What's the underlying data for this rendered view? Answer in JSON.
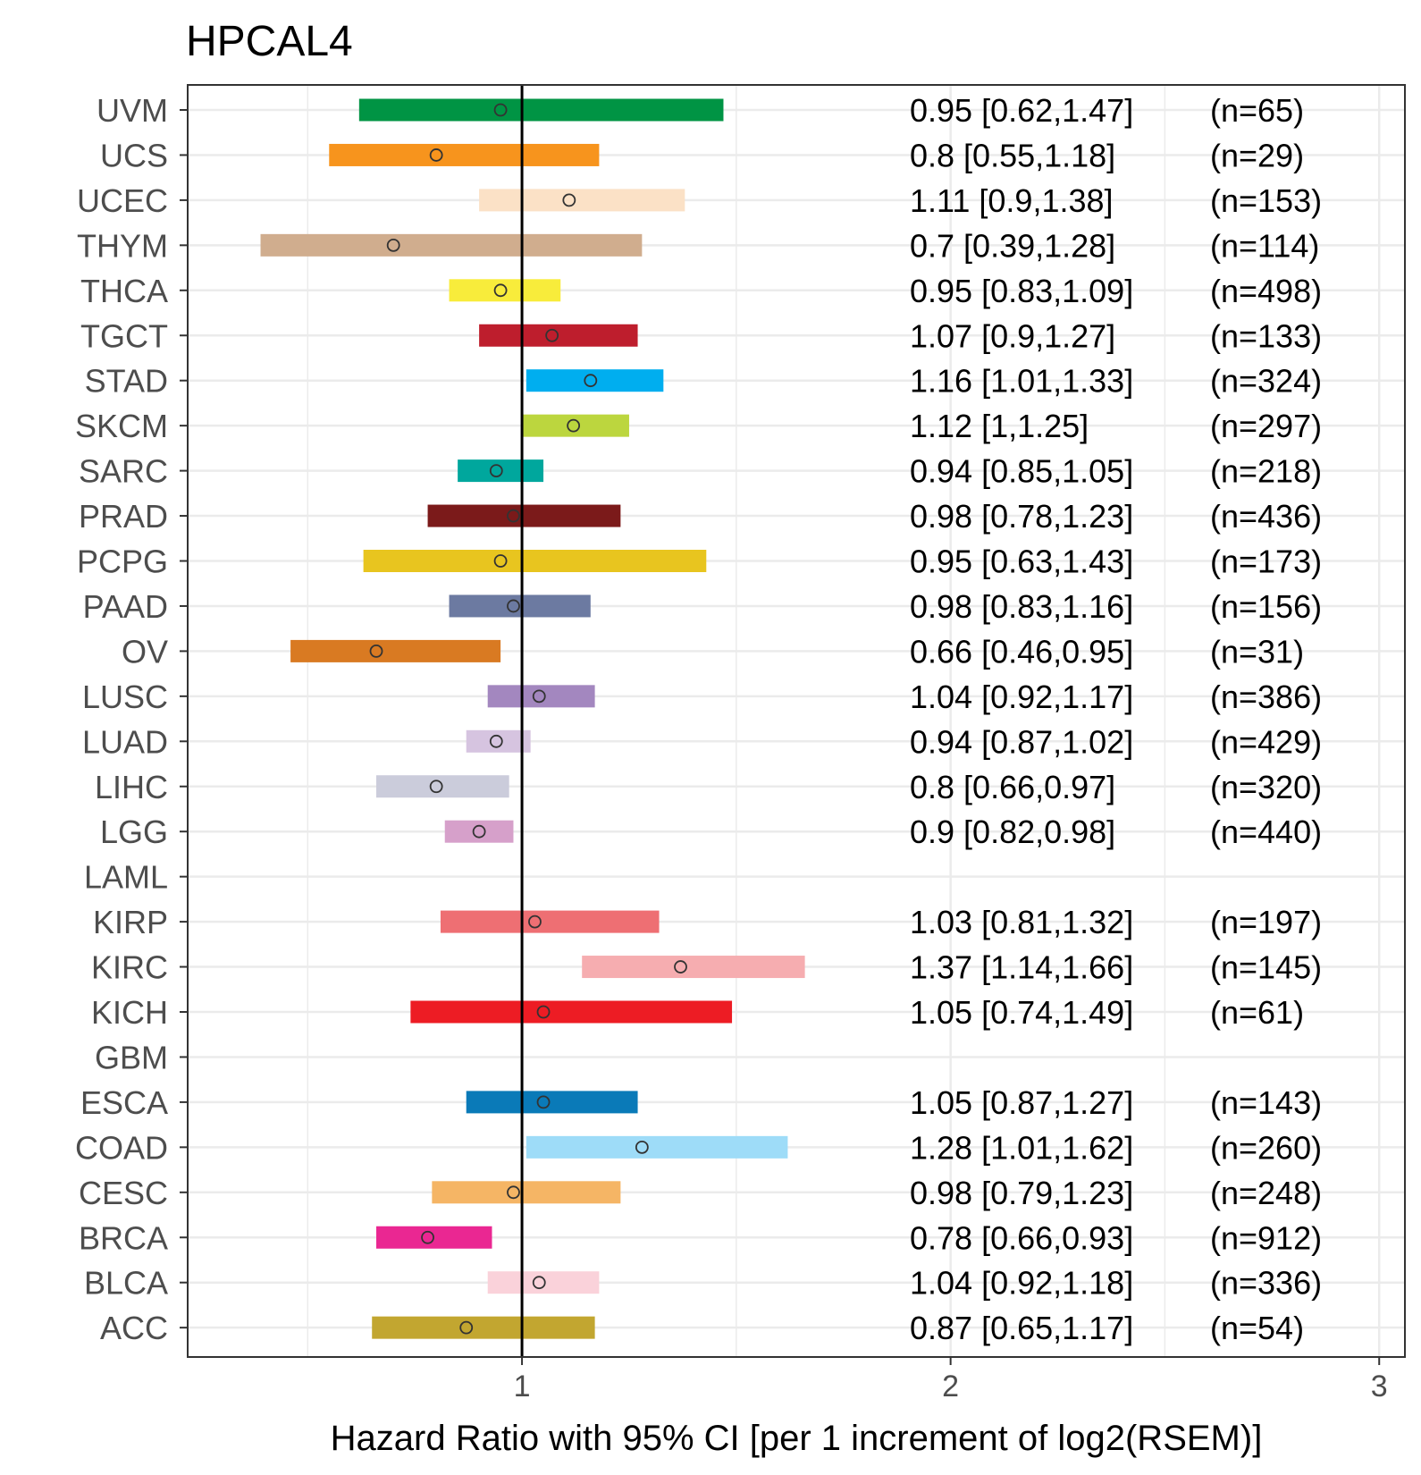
{
  "chart_data": {
    "type": "forest",
    "title": "HPCAL4",
    "xlabel": "Hazard Ratio with 95% CI [per 1 increment of log2(RSEM)]",
    "ylabel": "",
    "xlim": [
      0.22,
      3.06
    ],
    "x_ticks": [
      1,
      2,
      3
    ],
    "x_tick_labels": [
      "1",
      "2",
      "3"
    ],
    "reference_line": 1,
    "grid": true,
    "rows": [
      {
        "name": "UVM",
        "hr": 0.95,
        "lower": 0.62,
        "upper": 1.47,
        "label": "0.95 [0.62,1.47]",
        "n": "(n=65)",
        "color": "#009444"
      },
      {
        "name": "UCS",
        "hr": 0.8,
        "lower": 0.55,
        "upper": 1.18,
        "label": "0.8 [0.55,1.18]",
        "n": "(n=29)",
        "color": "#F7941D"
      },
      {
        "name": "UCEC",
        "hr": 1.11,
        "lower": 0.9,
        "upper": 1.38,
        "label": "1.11 [0.9,1.38]",
        "n": "(n=153)",
        "color": "#FBE1C6"
      },
      {
        "name": "THYM",
        "hr": 0.7,
        "lower": 0.39,
        "upper": 1.28,
        "label": "0.7 [0.39,1.28]",
        "n": "(n=114)",
        "color": "#D0AD8E"
      },
      {
        "name": "THCA",
        "hr": 0.95,
        "lower": 0.83,
        "upper": 1.09,
        "label": "0.95 [0.83,1.09]",
        "n": "(n=498)",
        "color": "#F8EC3B"
      },
      {
        "name": "TGCT",
        "hr": 1.07,
        "lower": 0.9,
        "upper": 1.27,
        "label": "1.07 [0.9,1.27]",
        "n": "(n=133)",
        "color": "#BE1E2D"
      },
      {
        "name": "STAD",
        "hr": 1.16,
        "lower": 1.01,
        "upper": 1.33,
        "label": "1.16 [1.01,1.33]",
        "n": "(n=324)",
        "color": "#00AEEF"
      },
      {
        "name": "SKCM",
        "hr": 1.12,
        "lower": 1,
        "upper": 1.25,
        "label": "1.12 [1,1.25]",
        "n": "(n=297)",
        "color": "#BCD63E"
      },
      {
        "name": "SARC",
        "hr": 0.94,
        "lower": 0.85,
        "upper": 1.05,
        "label": "0.94 [0.85,1.05]",
        "n": "(n=218)",
        "color": "#00A79D"
      },
      {
        "name": "PRAD",
        "hr": 0.98,
        "lower": 0.78,
        "upper": 1.23,
        "label": "0.98 [0.78,1.23]",
        "n": "(n=436)",
        "color": "#7B1A1A"
      },
      {
        "name": "PCPG",
        "hr": 0.95,
        "lower": 0.63,
        "upper": 1.43,
        "label": "0.95 [0.63,1.43]",
        "n": "(n=173)",
        "color": "#E8C51F"
      },
      {
        "name": "PAAD",
        "hr": 0.98,
        "lower": 0.83,
        "upper": 1.16,
        "label": "0.98 [0.83,1.16]",
        "n": "(n=156)",
        "color": "#6C7AA1"
      },
      {
        "name": "OV",
        "hr": 0.66,
        "lower": 0.46,
        "upper": 0.95,
        "label": "0.66 [0.46,0.95]",
        "n": "(n=31)",
        "color": "#D97A22"
      },
      {
        "name": "LUSC",
        "hr": 1.04,
        "lower": 0.92,
        "upper": 1.17,
        "label": "1.04 [0.92,1.17]",
        "n": "(n=386)",
        "color": "#A387BF"
      },
      {
        "name": "LUAD",
        "hr": 0.94,
        "lower": 0.87,
        "upper": 1.02,
        "label": "0.94 [0.87,1.02]",
        "n": "(n=429)",
        "color": "#D6C4E0"
      },
      {
        "name": "LIHC",
        "hr": 0.8,
        "lower": 0.66,
        "upper": 0.97,
        "label": "0.8 [0.66,0.97]",
        "n": "(n=320)",
        "color": "#CBCCDB"
      },
      {
        "name": "LGG",
        "hr": 0.9,
        "lower": 0.82,
        "upper": 0.98,
        "label": "0.9 [0.82,0.98]",
        "n": "(n=440)",
        "color": "#D6A0CA"
      },
      {
        "name": "LAML",
        "hr": null,
        "lower": null,
        "upper": null,
        "label": "",
        "n": "",
        "color": "#000000"
      },
      {
        "name": "KIRP",
        "hr": 1.03,
        "lower": 0.81,
        "upper": 1.32,
        "label": "1.03 [0.81,1.32]",
        "n": "(n=197)",
        "color": "#EE6F73"
      },
      {
        "name": "KIRC",
        "hr": 1.37,
        "lower": 1.14,
        "upper": 1.66,
        "label": "1.37 [1.14,1.66]",
        "n": "(n=145)",
        "color": "#F6ADB0"
      },
      {
        "name": "KICH",
        "hr": 1.05,
        "lower": 0.74,
        "upper": 1.49,
        "label": "1.05 [0.74,1.49]",
        "n": "(n=61)",
        "color": "#ED1C24"
      },
      {
        "name": "GBM",
        "hr": null,
        "lower": null,
        "upper": null,
        "label": "",
        "n": "",
        "color": "#000000"
      },
      {
        "name": "ESCA",
        "hr": 1.05,
        "lower": 0.87,
        "upper": 1.27,
        "label": "1.05 [0.87,1.27]",
        "n": "(n=143)",
        "color": "#0A7AB8"
      },
      {
        "name": "COAD",
        "hr": 1.28,
        "lower": 1.01,
        "upper": 1.62,
        "label": "1.28 [1.01,1.62]",
        "n": "(n=260)",
        "color": "#9EDCF8"
      },
      {
        "name": "CESC",
        "hr": 0.98,
        "lower": 0.79,
        "upper": 1.23,
        "label": "0.98 [0.79,1.23]",
        "n": "(n=248)",
        "color": "#F5B565"
      },
      {
        "name": "BRCA",
        "hr": 0.78,
        "lower": 0.66,
        "upper": 0.93,
        "label": "0.78 [0.66,0.93]",
        "n": "(n=912)",
        "color": "#EA2792"
      },
      {
        "name": "BLCA",
        "hr": 1.04,
        "lower": 0.92,
        "upper": 1.18,
        "label": "1.04 [0.92,1.18]",
        "n": "(n=336)",
        "color": "#FAD2DA"
      },
      {
        "name": "ACC",
        "hr": 0.87,
        "lower": 0.65,
        "upper": 1.17,
        "label": "0.87 [0.65,1.17]",
        "n": "(n=54)",
        "color": "#C2A630"
      }
    ]
  }
}
